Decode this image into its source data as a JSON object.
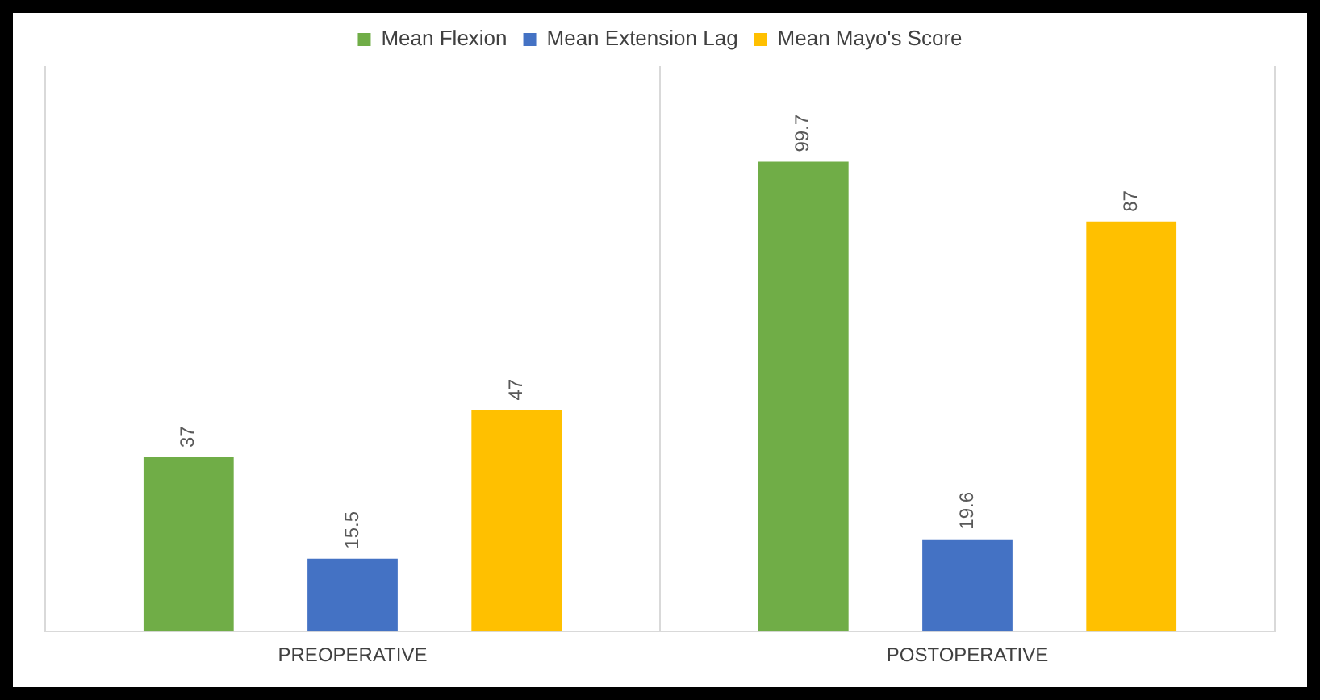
{
  "chart_data": {
    "type": "bar",
    "categories": [
      "PREOPERATIVE",
      "POSTOPERATIVE"
    ],
    "series": [
      {
        "name": "Mean Flexion",
        "color": "#70ad47",
        "values": [
          37,
          99.7
        ]
      },
      {
        "name": "Mean Extension Lag",
        "color": "#4472c4",
        "values": [
          15.5,
          19.6
        ]
      },
      {
        "name": "Mean Mayo's Score",
        "color": "#ffc000",
        "values": [
          47,
          87
        ]
      }
    ],
    "data_labels": true,
    "legend": "top",
    "grid": "x"
  }
}
